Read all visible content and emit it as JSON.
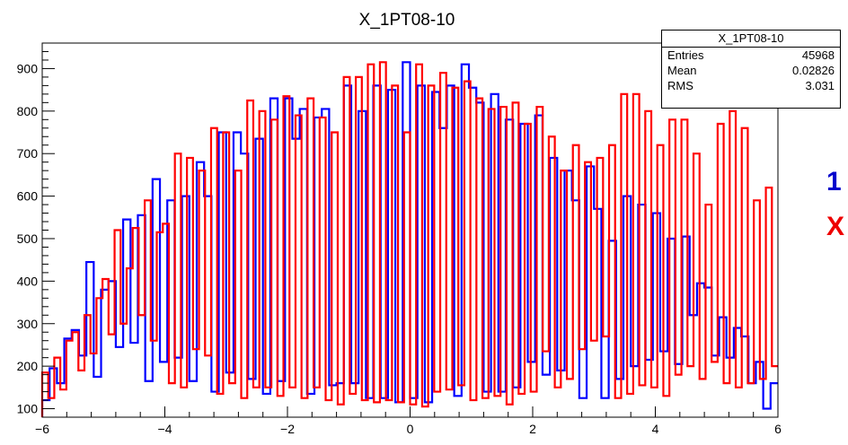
{
  "chart_data": {
    "type": "histogram",
    "title": "X_1PT08-10",
    "xlim": [
      -6,
      6
    ],
    "ylim": [
      80,
      960
    ],
    "x_ticks": [
      -6,
      -4,
      -2,
      0,
      2,
      4,
      6
    ],
    "y_ticks": [
      100,
      200,
      300,
      400,
      500,
      600,
      700,
      800,
      900
    ],
    "bin_width": 0.2,
    "bin_start": -6,
    "series": [
      {
        "color": "#0000ff",
        "values": [
          120,
          195,
          160,
          265,
          285,
          225,
          445,
          175,
          380,
          400,
          245,
          545,
          255,
          555,
          165,
          640,
          210,
          590,
          220,
          600,
          165,
          680,
          600,
          140,
          750,
          185,
          750,
          700,
          170,
          735,
          135,
          830,
          165,
          830,
          735,
          805,
          135,
          785,
          805,
          155,
          160,
          860,
          160,
          800,
          125,
          860,
          125,
          850,
          115,
          915,
          125,
          860,
          115,
          845,
          760,
          860,
          130,
          910,
          855,
          820,
          140,
          840,
          140,
          780,
          150,
          770,
          210,
          790,
          180,
          690,
          190,
          660,
          590,
          125,
          670,
          570,
          125,
          495,
          170,
          600,
          200,
          580,
          215,
          560,
          235,
          500,
          205,
          505,
          320,
          395,
          385,
          225,
          315,
          220,
          290,
          270,
          160,
          210,
          100,
          160
        ]
      },
      {
        "color": "#ff0000",
        "values": [
          185,
          125,
          220,
          145,
          260,
          280,
          190,
          320,
          230,
          360,
          405,
          275,
          520,
          300,
          430,
          525,
          320,
          590,
          260,
          515,
          535,
          160,
          700,
          150,
          690,
          240,
          660,
          225,
          760,
          135,
          750,
          160,
          660,
          125,
          825,
          150,
          800,
          150,
          780,
          130,
          835,
          150,
          790,
          125,
          830,
          150,
          785,
          120,
          750,
          110,
          880,
          135,
          880,
          120,
          910,
          115,
          915,
          120,
          860,
          115,
          750,
          110,
          910,
          105,
          860,
          140,
          890,
          145,
          855,
          155,
          870,
          120,
          830,
          125,
          805,
          130,
          810,
          110,
          820,
          135,
          770,
          140,
          810,
          235,
          740,
          150,
          660,
          170,
          720,
          240,
          680,
          260,
          690,
          270,
          720,
          125,
          840,
          135,
          840,
          155,
          800,
          150,
          720,
          130,
          780,
          180,
          780,
          200,
          700,
          170,
          580,
          210,
          770,
          160,
          800,
          150,
          760,
          160,
          590,
          170,
          620,
          200
        ]
      }
    ],
    "stats_box": {
      "title": "X_1PT08-10",
      "rows": [
        {
          "label": "Entries",
          "value": "45968"
        },
        {
          "label": "Mean",
          "value": "0.02826"
        },
        {
          "label": "RMS",
          "value": "3.031"
        }
      ]
    }
  },
  "side_labels": [
    "1",
    "X"
  ]
}
